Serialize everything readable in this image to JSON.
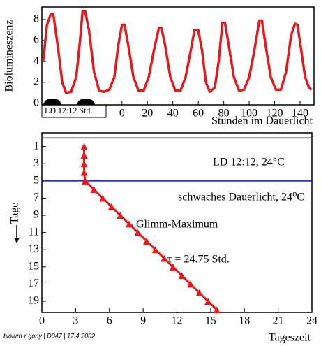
{
  "chart_data": [
    {
      "type": "line",
      "ylabel": "Biolumineszenz",
      "xlabel": "Stunden im Dauerlicht",
      "ld_label": "LD 12:12 Std.",
      "xlim": [
        -63,
        151
      ],
      "xticks": [
        0,
        20,
        40,
        60,
        80,
        100,
        120,
        140
      ],
      "ylim": [
        -0.15,
        9.2
      ],
      "yticks": [
        0,
        2,
        4,
        6,
        8
      ],
      "x": [
        -62,
        -59,
        -56,
        -54,
        -50,
        -47,
        -44,
        -40,
        -36,
        -33,
        -31,
        -29,
        -26,
        -22,
        -18,
        -14,
        -10,
        -6,
        -3,
        0,
        2,
        5,
        9,
        13,
        17,
        21,
        25,
        29,
        31,
        34,
        38,
        42,
        46,
        50,
        54,
        57,
        60,
        63,
        66,
        69,
        73,
        76,
        79,
        81,
        84,
        88,
        92,
        96,
        100,
        104,
        108,
        110,
        113,
        117,
        121,
        125,
        129,
        133,
        136,
        138,
        141,
        144,
        147,
        149
      ],
      "series": [
        {
          "color": "#e8191c",
          "values": [
            4.0,
            7.5,
            8.5,
            8.5,
            5,
            2,
            1.0,
            1.1,
            2.5,
            6,
            8.8,
            8.8,
            7,
            3,
            1.2,
            1.1,
            1.3,
            2.5,
            5.5,
            7.5,
            7.5,
            5.5,
            2.5,
            1.2,
            1.2,
            2.5,
            5,
            7.2,
            7.2,
            5.5,
            2.5,
            1.2,
            1.2,
            2.5,
            5,
            7,
            7,
            5,
            2,
            1.1,
            1.5,
            4,
            7.7,
            7.7,
            5.5,
            2.5,
            1.2,
            1.3,
            2.5,
            5,
            7.9,
            7.9,
            5.5,
            2.5,
            1.3,
            1.3,
            3,
            6.5,
            7.6,
            7.5,
            5,
            2.5,
            1.5,
            1.3
          ]
        }
      ]
    },
    {
      "type": "line",
      "marker": "triangle",
      "ylabel": "Tage",
      "xlabel": "Tageszeit",
      "xlim": [
        0,
        24
      ],
      "xticks": [
        0,
        3,
        6,
        9,
        12,
        15,
        18,
        21,
        24
      ],
      "ylim": [
        20.3,
        -0.6
      ],
      "yticks": [
        1,
        3,
        5,
        7,
        9,
        11,
        13,
        15,
        17,
        19
      ],
      "x": [
        3.75,
        3.75,
        3.75,
        3.75,
        3.85,
        4.63,
        5.41,
        6.19,
        6.97,
        7.75,
        8.53,
        9.31,
        10.09,
        10.87,
        11.65,
        12.43,
        13.21,
        13.99,
        14.77,
        15.55
      ],
      "series": [
        {
          "color": "#e8191c",
          "values": [
            1,
            2,
            3,
            4,
            5,
            6,
            7,
            8,
            9,
            10,
            11,
            12,
            13,
            14,
            15,
            16,
            17,
            18,
            19,
            20
          ]
        }
      ],
      "hlines": [
        {
          "value": 0,
          "color": "#000000"
        },
        {
          "value": 5,
          "color": "#1010c8"
        }
      ],
      "annotations": [
        "LD 12:12, 24°C",
        "schwaches Dauerlicht, 24⁰C",
        "Glimm-Maximum",
        "τ = 24.75 Std."
      ]
    }
  ],
  "footer": "biolum-r-gony | D047 | 17.4.2002"
}
